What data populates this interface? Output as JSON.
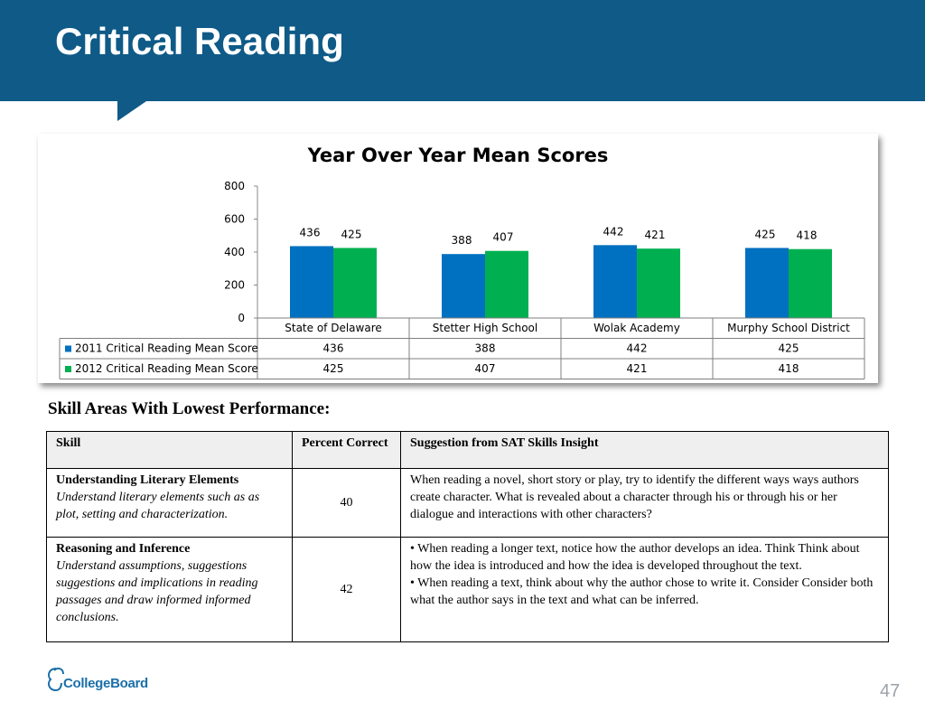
{
  "slide": {
    "title": "Critical Reading",
    "page_number": "47"
  },
  "chart_data": {
    "type": "bar",
    "title": "Year Over Year Mean Scores",
    "categories": [
      "State of Delaware",
      "Stetter High School",
      "Wolak Academy",
      "Murphy School District"
    ],
    "series": [
      {
        "name": "2011 Critical Reading Mean Score",
        "values": [
          436,
          388,
          442,
          425
        ],
        "color": "#0070c0"
      },
      {
        "name": "2012 Critical Reading Mean Score",
        "values": [
          425,
          407,
          421,
          418
        ],
        "color": "#00b050"
      }
    ],
    "ylim": [
      0,
      800
    ],
    "yticks": [
      0,
      200,
      400,
      600,
      800
    ],
    "data_labels": true,
    "data_table": true,
    "grid": false,
    "legend": "in data table"
  },
  "skills_section": {
    "heading": "Skill Areas With Lowest Performance:",
    "headers": [
      "Skill",
      "Percent Correct",
      "Suggestion from SAT Skills Insight"
    ],
    "rows": [
      {
        "skill": "Understanding Literary Elements",
        "description": "Understand literary elements such as as plot, setting and characterization.",
        "percent": "40",
        "suggestion": "When reading a novel, short story or play, try to identify the different ways ways authors create character. What is revealed about a character through his or through his or her dialogue and interactions with other characters?"
      },
      {
        "skill": "Reasoning and Inference",
        "description": "Understand assumptions, suggestions suggestions and implications in reading passages and draw informed informed conclusions.",
        "percent": "42",
        "suggestion_1": "• When reading a longer text, notice how the author develops an idea. Think Think about how the idea is introduced and how the idea is developed throughout the text.",
        "suggestion_2": "• When reading a text, think about why the author chose to write it. Consider Consider both what the author says in the text and what can be inferred."
      }
    ]
  },
  "logo": {
    "text": "CollegeBoard"
  }
}
